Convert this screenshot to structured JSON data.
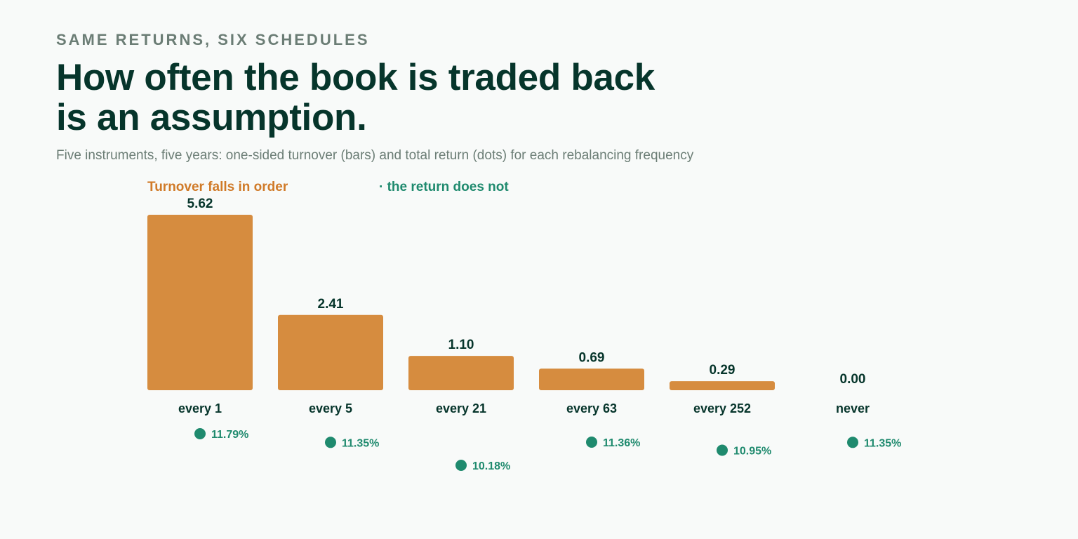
{
  "header": {
    "eyebrow": "SAME RETURNS, SIX SCHEDULES",
    "title": "How often the book is traded back is an assumption.",
    "subtitle": "Five instruments, five years: one-sided turnover (bars) and total return (dots) for each rebalancing frequency"
  },
  "legend": {
    "bars_label": "Turnover falls in order",
    "dots_label": "· the return does not"
  },
  "colors": {
    "bar": "#d68c3f",
    "dot": "#1f8a6e",
    "text_dark": "#06352b",
    "muted": "#6b7d75"
  },
  "chart_data": {
    "type": "bar",
    "categories": [
      "every 1",
      "every 5",
      "every 21",
      "every 63",
      "every 252",
      "never"
    ],
    "series": [
      {
        "name": "Turnover falls in order",
        "kind": "bar",
        "values": [
          5.62,
          2.41,
          1.1,
          0.69,
          0.29,
          0.0
        ],
        "labels": [
          "5.62",
          "2.41",
          "1.10",
          "0.69",
          "0.29",
          "0.00"
        ]
      },
      {
        "name": "· the return does not",
        "kind": "dot",
        "values": [
          11.79,
          11.35,
          10.18,
          11.36,
          10.95,
          11.35
        ],
        "labels": [
          "11.79%",
          "11.35%",
          "10.18%",
          "11.36%",
          "10.95%",
          "11.35%"
        ]
      }
    ],
    "title": "How often the book is traded back is an assumption.",
    "subtitle": "Five instruments, five years: one-sided turnover (bars) and total return (dots) for each rebalancing frequency",
    "xlabel": "",
    "ylabel": "",
    "ylim": [
      0,
      5.62
    ],
    "y2lim": [
      10.18,
      11.79
    ],
    "grid": false,
    "legend_position": "top-left"
  }
}
